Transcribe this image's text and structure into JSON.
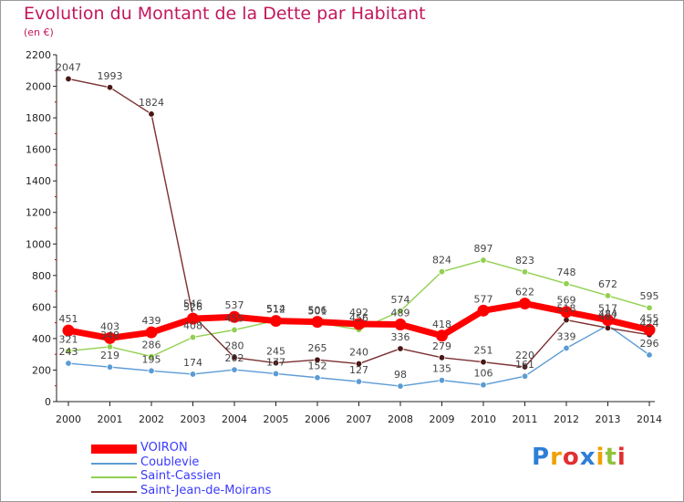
{
  "title": "Evolution du Montant de la Dette par Habitant",
  "subtitle": "(en €)",
  "brand": {
    "text": "Proxiti",
    "colors": [
      "#2e7fd6",
      "#f0a000",
      "#e03030",
      "#2e7fd6",
      "#f0a000",
      "#8fc43a",
      "#e03030"
    ]
  },
  "chart_data": {
    "type": "line",
    "title": "Evolution du Montant de la Dette par Habitant",
    "ylabel": "(en €)",
    "xlabel": "",
    "x": [
      "2000",
      "2001",
      "2002",
      "2003",
      "2004",
      "2005",
      "2006",
      "2007",
      "2008",
      "2009",
      "2010",
      "2011",
      "2012",
      "2013",
      "2014"
    ],
    "ylim": [
      0,
      2200
    ],
    "yticks": [
      0,
      200,
      400,
      600,
      800,
      1000,
      1200,
      1400,
      1600,
      1800,
      2000,
      2200
    ],
    "grid": false,
    "legend_position": "bottom-left",
    "series": [
      {
        "name": "VOIRON",
        "color": "#ff0000",
        "values": [
          451,
          403,
          439,
          526,
          537,
          512,
          506,
          492,
          489,
          418,
          577,
          622,
          569,
          517,
          455
        ]
      },
      {
        "name": "Coublevie",
        "color": "#5b9bd5",
        "values": [
          243,
          219,
          195,
          174,
          202,
          177,
          152,
          127,
          98,
          135,
          106,
          161,
          339,
          484,
          296
        ]
      },
      {
        "name": "Saint-Cassien",
        "color": "#92d050",
        "values": [
          321,
          348,
          286,
          408,
          455,
          514,
          501,
          456,
          574,
          824,
          897,
          823,
          748,
          672,
          595
        ]
      },
      {
        "name": "Saint-Jean-de-Moirans",
        "color": "#7b2f2f",
        "values": [
          2047,
          1993,
          1824,
          546,
          280,
          245,
          265,
          240,
          336,
          279,
          251,
          220,
          518,
          467,
          424
        ]
      }
    ]
  }
}
